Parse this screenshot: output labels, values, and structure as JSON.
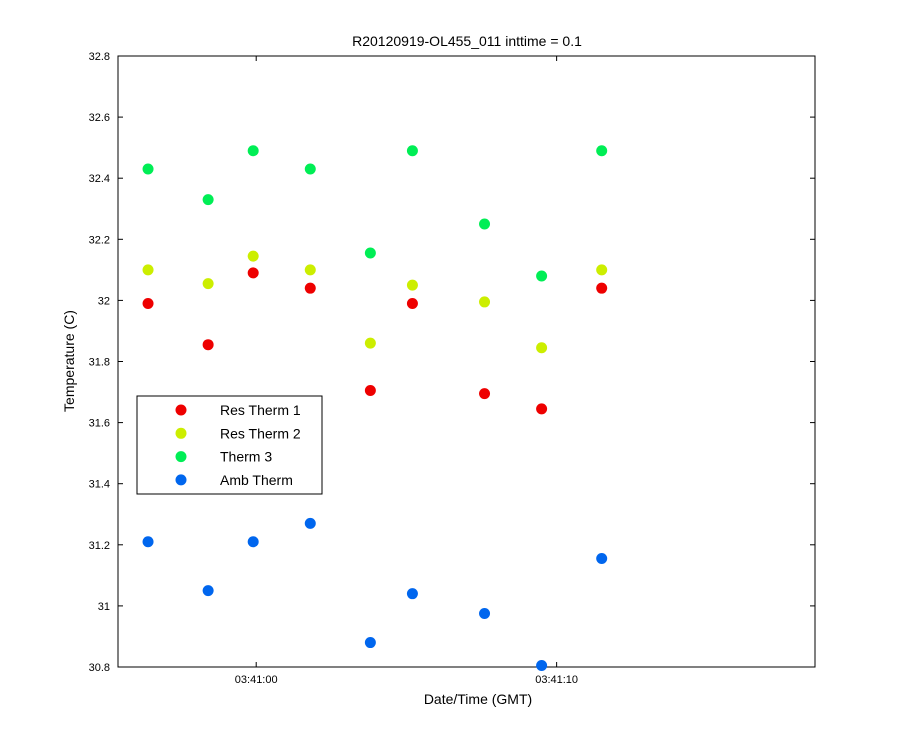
{
  "chart_data": {
    "type": "scatter",
    "title": "R20120919-OL455_011 inttime = 0.1",
    "xlabel": "Date/Time (GMT)",
    "ylabel": "Temperature (C)",
    "xlim": [
      "03:40:55.4",
      "03:41:18.6"
    ],
    "ylim": [
      30.8,
      32.8
    ],
    "x_ticks": [
      "03:41:00",
      "03:41:10"
    ],
    "y_ticks": [
      "30.8",
      "31",
      "31.2",
      "31.4",
      "31.6",
      "31.8",
      "32",
      "32.2",
      "32.4",
      "32.6",
      "32.8"
    ],
    "grid": false,
    "legend_position": "left",
    "x": [
      "03:40:56.4",
      "03:40:58.4",
      "03:40:59.9",
      "03:41:01.8",
      "03:41:03.8",
      "03:41:05.2",
      "03:41:07.6",
      "03:41:09.5",
      "03:41:11.5"
    ],
    "series": [
      {
        "name": "Res Therm 1",
        "color": "#ee0000",
        "values": [
          31.99,
          31.855,
          32.09,
          32.04,
          31.705,
          31.99,
          31.695,
          31.645,
          32.04
        ]
      },
      {
        "name": "Res Therm 2",
        "color": "#ccee00",
        "values": [
          32.1,
          32.055,
          32.145,
          32.1,
          31.86,
          32.05,
          31.995,
          31.845,
          32.1
        ]
      },
      {
        "name": "Therm 3",
        "color": "#00ee55",
        "values": [
          32.43,
          32.33,
          32.49,
          32.43,
          32.155,
          32.49,
          32.25,
          32.08,
          32.49
        ]
      },
      {
        "name": "Amb Therm",
        "color": "#0066ee",
        "values": [
          31.21,
          31.05,
          31.21,
          31.27,
          30.88,
          31.04,
          30.975,
          30.805,
          31.155
        ]
      }
    ]
  }
}
